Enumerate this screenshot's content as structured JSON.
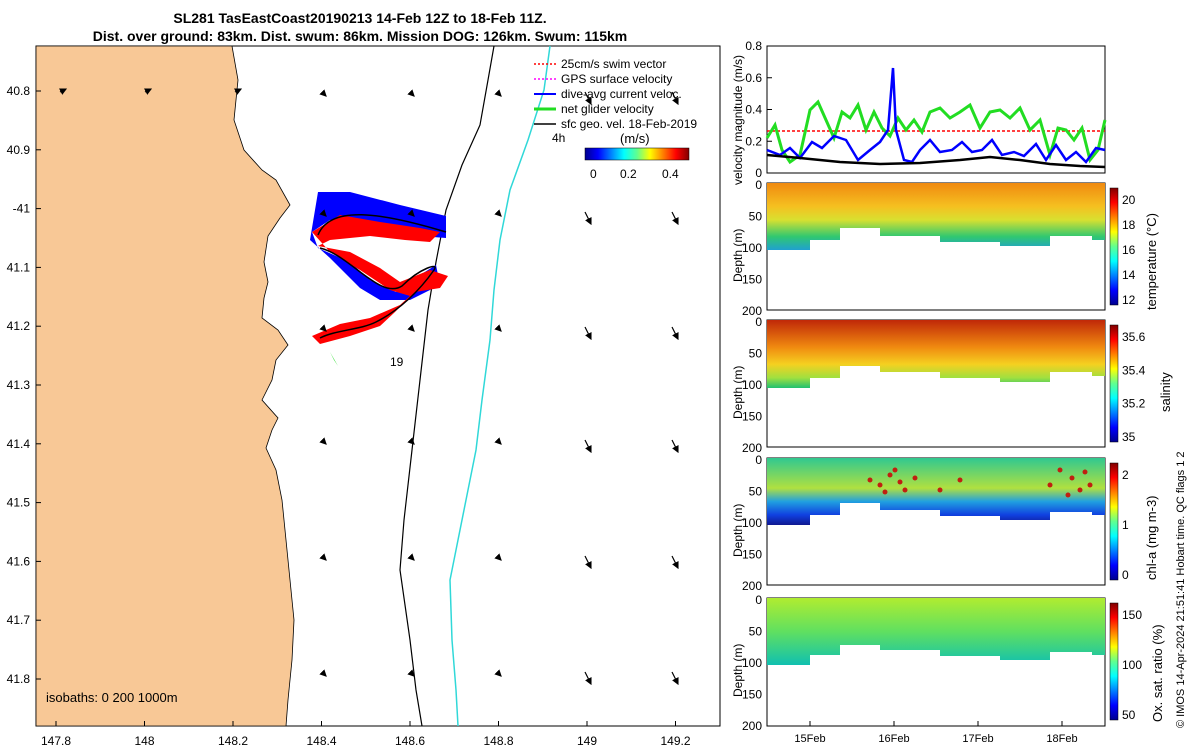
{
  "title_line1": "SL281 TasEastCoast20190213 14-Feb 12Z to 18-Feb 11Z.",
  "title_line2": "Dist. over ground: 83km. Dist. swum: 86km. Mission DOG: 126km. Swum: 115km",
  "colors": {
    "land": "#f8c896",
    "isobath200": "#000000",
    "isobath1000": "#30d8d8",
    "red": "#ff0000",
    "blue": "#0000ff",
    "green": "#22dd22",
    "black": "#000000",
    "magenta": "#ff00ff"
  },
  "map": {
    "legend": [
      "25cm/s swim vector",
      "GPS surface velocity",
      "dive-avg current veloc.",
      "net glider velocity",
      "sfc geo. vel. 18-Feb-2019"
    ],
    "scale_label": "4h",
    "colorbar_label": "(m/s)",
    "colorbar_ticks": [
      "0",
      "0.2",
      "0.4"
    ],
    "day_label": "19",
    "isobaths_text": "isobaths: 0   200  1000m",
    "lon_ticks": [
      "147.8",
      "148",
      "148.2",
      "148.4",
      "148.6",
      "148.8",
      "149",
      "149.2"
    ],
    "lat_ticks": [
      "40.8",
      "40.9",
      "-41",
      "41.1",
      "41.2",
      "41.3",
      "41.4",
      "41.5",
      "41.6",
      "41.7",
      "41.8"
    ]
  },
  "chart_data": [
    {
      "type": "line",
      "ylabel": "velocity magnitude (m/s)",
      "ylim": [
        0,
        0.8
      ],
      "yticks": [
        "0",
        "0.2",
        "0.4",
        "0.6",
        "0.8"
      ],
      "series": [
        {
          "name": "net glider velocity",
          "color": "#22dd22"
        },
        {
          "name": "dive-avg current",
          "color": "#0000ff",
          "peak": 0.66
        },
        {
          "name": "sfc geo vel",
          "color": "#000000"
        },
        {
          "name": "25cm/s swim",
          "color": "#ff0000",
          "value": 0.25
        }
      ]
    },
    {
      "type": "heatmap",
      "ylabel": "Depth (m)",
      "cblabel": "temperature (°C)",
      "cbticks": [
        "12",
        "14",
        "16",
        "18",
        "20"
      ],
      "yticks": [
        "0",
        "50",
        "100",
        "150",
        "200"
      ]
    },
    {
      "type": "heatmap",
      "ylabel": "Depth (m)",
      "cblabel": "salinity",
      "cbticks": [
        "35",
        "35.2",
        "35.4",
        "35.6"
      ],
      "yticks": [
        "0",
        "50",
        "100",
        "150",
        "200"
      ]
    },
    {
      "type": "heatmap",
      "ylabel": "Depth (m)",
      "cblabel": "chl-a (mg m-3)",
      "cbticks": [
        "0",
        "1",
        "2"
      ],
      "yticks": [
        "0",
        "50",
        "100",
        "150",
        "200"
      ]
    },
    {
      "type": "heatmap",
      "ylabel": "Depth (m)",
      "cblabel": "Ox. sat. ratio (%)",
      "cbticks": [
        "50",
        "100",
        "150"
      ],
      "yticks": [
        "0",
        "50",
        "100",
        "150",
        "200"
      ]
    }
  ],
  "time_ticks": [
    "15Feb",
    "16Feb",
    "17Feb",
    "18Feb"
  ],
  "credit": "© IMOS 14-Apr-2024 21:51:41 Hobart time. QC flags 1  2"
}
